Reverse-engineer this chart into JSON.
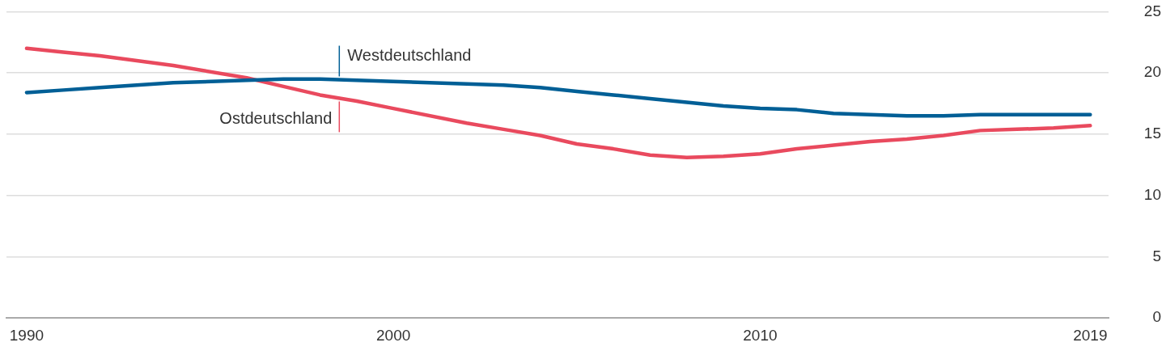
{
  "chart_data": {
    "type": "line",
    "x": [
      1990,
      1991,
      1992,
      1994,
      1996,
      1997,
      1998,
      1999,
      2000,
      2002,
      2003,
      2004,
      2005,
      2006,
      2007,
      2008,
      2009,
      2010,
      2011,
      2012,
      2013,
      2014,
      2015,
      2016,
      2017,
      2018,
      2019
    ],
    "series": [
      {
        "name": "Westdeutschland",
        "color": "#005f96",
        "values": [
          18.4,
          18.6,
          18.8,
          19.2,
          19.4,
          19.5,
          19.5,
          19.4,
          19.3,
          19.1,
          19.0,
          18.8,
          18.5,
          18.2,
          17.9,
          17.6,
          17.3,
          17.1,
          17.0,
          16.7,
          16.6,
          16.5,
          16.5,
          16.6,
          16.6,
          16.6,
          16.6
        ]
      },
      {
        "name": "Ostdeutschland",
        "color": "#e94a5e",
        "values": [
          22.0,
          21.7,
          21.4,
          20.6,
          19.6,
          18.9,
          18.2,
          17.7,
          17.1,
          15.9,
          15.4,
          14.9,
          14.2,
          13.8,
          13.3,
          13.1,
          13.2,
          13.4,
          13.8,
          14.1,
          14.4,
          14.6,
          14.9,
          15.3,
          15.4,
          15.5,
          15.7
        ]
      }
    ],
    "xlim": [
      1989.45,
      2019.5
    ],
    "xticks": [
      1990,
      2000,
      2010,
      2019
    ],
    "ylim": [
      0,
      25
    ],
    "yticks": [
      0,
      5,
      10,
      15,
      20,
      25
    ],
    "grid": "y",
    "marker": "none",
    "line_style": "solid"
  }
}
